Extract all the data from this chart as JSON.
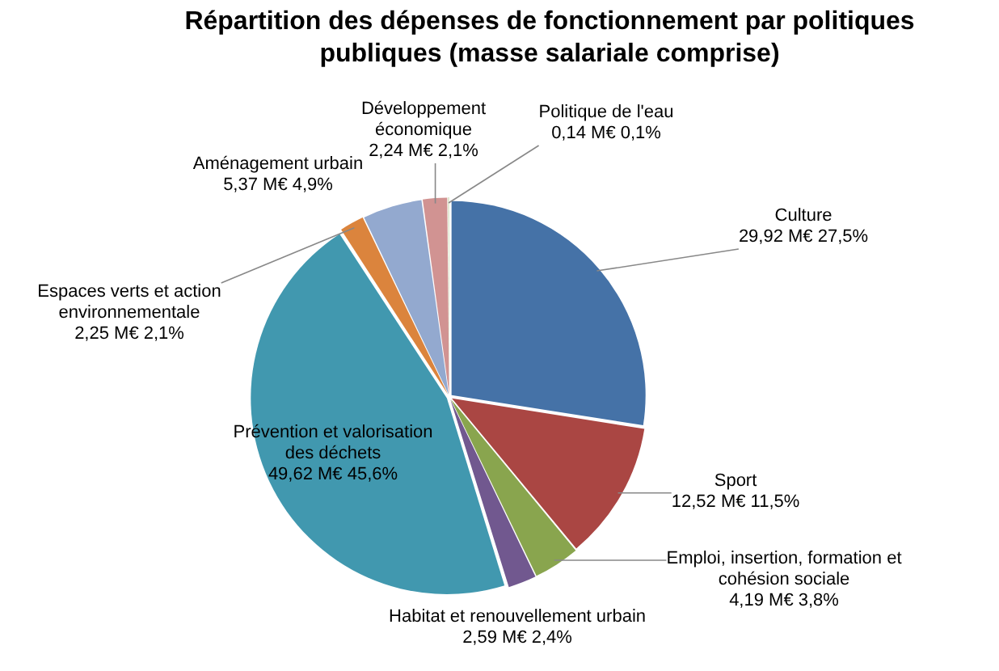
{
  "chart_data": {
    "type": "pie",
    "title": "Répartition des dépenses de fonctionnement par politiques publiques (masse salariale comprise)",
    "categories": [
      "Culture",
      "Sport",
      "Emploi, insertion, formation et cohésion sociale",
      "Habitat et renouvellement urbain",
      "Prévention et valorisation des déchets",
      "Espaces verts et action environnementale",
      "Aménagement urbain",
      "Développement économique",
      "Politique de l'eau"
    ],
    "values": [
      29.92,
      12.52,
      4.19,
      2.59,
      49.62,
      2.25,
      5.37,
      2.24,
      0.14
    ],
    "value_labels": [
      "29,92 M€ 27,5%",
      "12,52 M€ 11,5%",
      "4,19 M€ 3,8%",
      "2,59 M€ 2,4%",
      "49,62 M€ 45,6%",
      "2,25 M€ 2,1%",
      "5,37 M€ 4,9%",
      "2,24 M€ 2,1%",
      "0,14 M€ 0,1%"
    ],
    "colors": [
      "#4572a7",
      "#aa4643",
      "#89a54e",
      "#71588f",
      "#4198af",
      "#db843d",
      "#93a9cf",
      "#d19392",
      "#b9cd96"
    ],
    "legend": false
  }
}
